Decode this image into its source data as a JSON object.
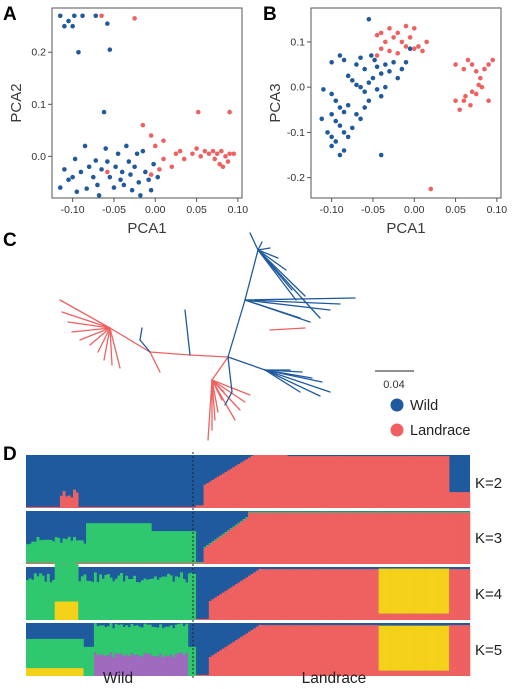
{
  "panels": {
    "a": "A",
    "b": "B",
    "c": "C",
    "d": "D"
  },
  "colors": {
    "wild": "#1f5a9e",
    "landrace": "#ef6161",
    "cluster3": "#30c86e",
    "cluster4": "#f4d21a",
    "cluster5": "#a06bbf"
  },
  "legend": {
    "scale_label": "0.04",
    "items": [
      {
        "label": "Wild",
        "color": "#1f5a9e"
      },
      {
        "label": "Landrace",
        "color": "#ef6161"
      }
    ]
  },
  "chart_data": [
    {
      "type": "scatter",
      "panel": "A",
      "xlabel": "PCA1",
      "ylabel": "PCA2",
      "xlim": [
        -0.125,
        0.105
      ],
      "ylim": [
        -0.08,
        0.285
      ],
      "xticks": [
        "-0.10",
        "-0.05",
        "0.00",
        "0.05",
        "0.10"
      ],
      "yticks": [
        "0.0",
        "0.1",
        "0.2"
      ],
      "series": [
        {
          "name": "Wild",
          "points": [
            [
              -0.115,
              0.27
            ],
            [
              -0.11,
              0.25
            ],
            [
              -0.105,
              0.26
            ],
            [
              -0.1,
              0.25
            ],
            [
              -0.098,
              0.27
            ],
            [
              -0.088,
              0.27
            ],
            [
              -0.072,
              0.27
            ],
            [
              -0.058,
              0.255
            ],
            [
              -0.055,
              0.205
            ],
            [
              -0.093,
              0.2
            ],
            [
              -0.062,
              0.085
            ],
            [
              -0.097,
              -0.005
            ],
            [
              -0.11,
              -0.025
            ],
            [
              -0.105,
              -0.045
            ],
            [
              -0.115,
              -0.06
            ],
            [
              -0.1,
              -0.04
            ],
            [
              -0.09,
              -0.03
            ],
            [
              -0.085,
              0.02
            ],
            [
              -0.08,
              -0.02
            ],
            [
              -0.075,
              -0.04
            ],
            [
              -0.072,
              -0.008
            ],
            [
              -0.07,
              -0.055
            ],
            [
              -0.065,
              -0.025
            ],
            [
              -0.06,
              0.015
            ],
            [
              -0.058,
              -0.01
            ],
            [
              -0.055,
              -0.04
            ],
            [
              -0.05,
              -0.06
            ],
            [
              -0.048,
              -0.02
            ],
            [
              -0.045,
              0.005
            ],
            [
              -0.042,
              -0.045
            ],
            [
              -0.04,
              -0.03
            ],
            [
              -0.038,
              -0.055
            ],
            [
              -0.035,
              0.02
            ],
            [
              -0.032,
              -0.01
            ],
            [
              -0.03,
              -0.035
            ],
            [
              -0.028,
              -0.065
            ],
            [
              -0.025,
              -0.02
            ],
            [
              -0.022,
              0.005
            ],
            [
              -0.02,
              -0.05
            ],
            [
              -0.015,
              0.01
            ],
            [
              -0.012,
              -0.03
            ],
            [
              -0.008,
              -0.045
            ],
            [
              -0.005,
              -0.065
            ],
            [
              -0.002,
              -0.015
            ],
            [
              0.003,
              -0.04
            ],
            [
              -0.018,
              -0.075
            ],
            [
              -0.068,
              -0.075
            ],
            [
              -0.095,
              -0.068
            ],
            [
              -0.083,
              -0.062
            ]
          ]
        },
        {
          "name": "Landrace",
          "points": [
            [
              -0.065,
              0.27
            ],
            [
              -0.025,
              0.265
            ],
            [
              0.052,
              0.085
            ],
            [
              0.09,
              0.085
            ],
            [
              -0.015,
              0.06
            ],
            [
              -0.005,
              0.04
            ],
            [
              0.0,
              0.02
            ],
            [
              0.01,
              0.03
            ],
            [
              0.03,
              0.01
            ],
            [
              0.045,
              0.005
            ],
            [
              0.05,
              0.015
            ],
            [
              0.055,
              0.0
            ],
            [
              0.06,
              0.01
            ],
            [
              0.065,
              0.005
            ],
            [
              0.07,
              0.01
            ],
            [
              0.072,
              -0.005
            ],
            [
              0.075,
              0.005
            ],
            [
              0.078,
              -0.015
            ],
            [
              0.08,
              0.01
            ],
            [
              0.082,
              -0.02
            ],
            [
              0.085,
              0.0
            ],
            [
              0.088,
              -0.01
            ],
            [
              0.09,
              0.005
            ],
            [
              0.095,
              0.005
            ],
            [
              0.035,
              -0.005
            ],
            [
              0.02,
              -0.02
            ],
            [
              0.005,
              -0.025
            ],
            [
              -0.005,
              -0.035
            ],
            [
              0.01,
              -0.005
            ],
            [
              -0.058,
              -0.03
            ],
            [
              0.025,
              0.005
            ]
          ]
        }
      ]
    },
    {
      "type": "scatter",
      "panel": "B",
      "xlabel": "PCA1",
      "ylabel": "PCA3",
      "xlim": [
        -0.125,
        0.105
      ],
      "ylim": [
        -0.245,
        0.175
      ],
      "xticks": [
        "-0.10",
        "-0.05",
        "0.00",
        "0.05",
        "0.10"
      ],
      "yticks": [
        "-0.2",
        "-0.1",
        "0.0",
        "0.1"
      ],
      "series": [
        {
          "name": "Wild",
          "points": [
            [
              -0.055,
              0.15
            ],
            [
              -0.09,
              0.07
            ],
            [
              -0.085,
              0.06
            ],
            [
              -0.1,
              0.055
            ],
            [
              -0.07,
              0.05
            ],
            [
              -0.065,
              0.065
            ],
            [
              -0.06,
              0.04
            ],
            [
              -0.052,
              0.07
            ],
            [
              -0.048,
              0.06
            ],
            [
              -0.045,
              0.045
            ],
            [
              -0.04,
              0.03
            ],
            [
              -0.035,
              0.05
            ],
            [
              -0.03,
              0.035
            ],
            [
              -0.025,
              0.055
            ],
            [
              -0.02,
              0.02
            ],
            [
              -0.08,
              0.025
            ],
            [
              -0.075,
              0.015
            ],
            [
              -0.07,
              0.005
            ],
            [
              -0.065,
              0.0
            ],
            [
              -0.06,
              -0.01
            ],
            [
              -0.055,
              0.01
            ],
            [
              -0.05,
              0.02
            ],
            [
              -0.045,
              -0.005
            ],
            [
              -0.04,
              -0.02
            ],
            [
              -0.035,
              0.0
            ],
            [
              -0.11,
              -0.005
            ],
            [
              -0.1,
              -0.015
            ],
            [
              -0.095,
              -0.03
            ],
            [
              -0.09,
              -0.045
            ],
            [
              -0.085,
              -0.055
            ],
            [
              -0.08,
              -0.04
            ],
            [
              -0.1,
              -0.06
            ],
            [
              -0.095,
              -0.075
            ],
            [
              -0.09,
              -0.085
            ],
            [
              -0.085,
              -0.1
            ],
            [
              -0.08,
              -0.11
            ],
            [
              -0.075,
              -0.09
            ],
            [
              -0.07,
              -0.06
            ],
            [
              -0.065,
              -0.07
            ],
            [
              -0.105,
              -0.1
            ],
            [
              -0.1,
              -0.11
            ],
            [
              -0.1,
              -0.13
            ],
            [
              -0.095,
              -0.12
            ],
            [
              -0.09,
              -0.15
            ],
            [
              -0.085,
              -0.14
            ],
            [
              -0.04,
              -0.15
            ],
            [
              -0.015,
              0.04
            ],
            [
              -0.01,
              0.055
            ],
            [
              -0.005,
              0.085
            ],
            [
              -0.055,
              -0.03
            ],
            [
              -0.06,
              -0.045
            ],
            [
              -0.112,
              -0.07
            ]
          ]
        },
        {
          "name": "Landrace",
          "points": [
            [
              -0.045,
              0.115
            ],
            [
              -0.04,
              0.12
            ],
            [
              -0.035,
              0.1
            ],
            [
              -0.03,
              0.13
            ],
            [
              -0.025,
              0.11
            ],
            [
              -0.02,
              0.12
            ],
            [
              -0.015,
              0.1
            ],
            [
              -0.01,
              0.09
            ],
            [
              -0.005,
              0.11
            ],
            [
              0.0,
              0.085
            ],
            [
              0.005,
              0.09
            ],
            [
              0.01,
              0.08
            ],
            [
              0.015,
              0.1
            ],
            [
              -0.02,
              0.075
            ],
            [
              -0.03,
              0.08
            ],
            [
              -0.04,
              0.085
            ],
            [
              -0.045,
              0.07
            ],
            [
              0.05,
              0.05
            ],
            [
              0.06,
              0.04
            ],
            [
              0.065,
              0.06
            ],
            [
              0.07,
              0.05
            ],
            [
              0.075,
              0.035
            ],
            [
              0.08,
              0.02
            ],
            [
              0.085,
              0.04
            ],
            [
              0.09,
              0.05
            ],
            [
              0.078,
              0.005
            ],
            [
              0.07,
              -0.01
            ],
            [
              0.062,
              -0.02
            ],
            [
              0.055,
              -0.05
            ],
            [
              0.06,
              -0.03
            ],
            [
              0.068,
              -0.04
            ],
            [
              0.075,
              -0.015
            ],
            [
              0.082,
              0.0
            ],
            [
              0.09,
              -0.03
            ],
            [
              0.095,
              0.06
            ],
            [
              0.05,
              -0.03
            ],
            [
              0.02,
              -0.225
            ],
            [
              -0.01,
              0.135
            ],
            [
              0.0,
              0.13
            ]
          ]
        }
      ]
    },
    {
      "type": "bar",
      "panel": "D",
      "title": "",
      "groups": [
        "Wild",
        "Landrace"
      ],
      "rows": [
        {
          "label": "K=2",
          "k": 2
        },
        {
          "label": "K=3",
          "k": 3
        },
        {
          "label": "K=4",
          "k": 4
        },
        {
          "label": "K=5",
          "k": 5
        }
      ]
    }
  ]
}
